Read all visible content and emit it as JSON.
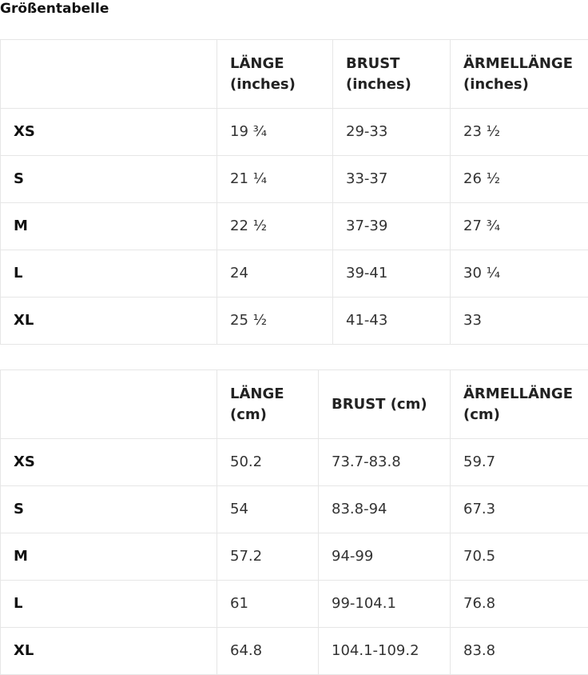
{
  "page_title": "Größentabelle",
  "tables": [
    {
      "headers": [
        "",
        "LÄNGE (inches)",
        "BRUST (inches)",
        "ÄRMELLÄNGE (inches)"
      ],
      "rows": [
        {
          "size": "XS",
          "length": "19 ¾",
          "chest": "29-33",
          "sleeve": "23 ½"
        },
        {
          "size": "S",
          "length": "21 ¼",
          "chest": "33-37",
          "sleeve": "26 ½"
        },
        {
          "size": "M",
          "length": "22 ½",
          "chest": "37-39",
          "sleeve": "27 ¾"
        },
        {
          "size": "L",
          "length": "24",
          "chest": "39-41",
          "sleeve": "30 ¼"
        },
        {
          "size": "XL",
          "length": "25 ½",
          "chest": "41-43",
          "sleeve": "33"
        }
      ]
    },
    {
      "headers": [
        "",
        "LÄNGE (cm)",
        "BRUST (cm)",
        "ÄRMELLÄNGE (cm)"
      ],
      "rows": [
        {
          "size": "XS",
          "length": "50.2",
          "chest": "73.7-83.8",
          "sleeve": "59.7"
        },
        {
          "size": "S",
          "length": "54",
          "chest": "83.8-94",
          "sleeve": "67.3"
        },
        {
          "size": "M",
          "length": "57.2",
          "chest": "94-99",
          "sleeve": "70.5"
        },
        {
          "size": "L",
          "length": "61",
          "chest": "99-104.1",
          "sleeve": "76.8"
        },
        {
          "size": "XL",
          "length": "64.8",
          "chest": "104.1-109.2",
          "sleeve": "83.8"
        }
      ]
    }
  ]
}
